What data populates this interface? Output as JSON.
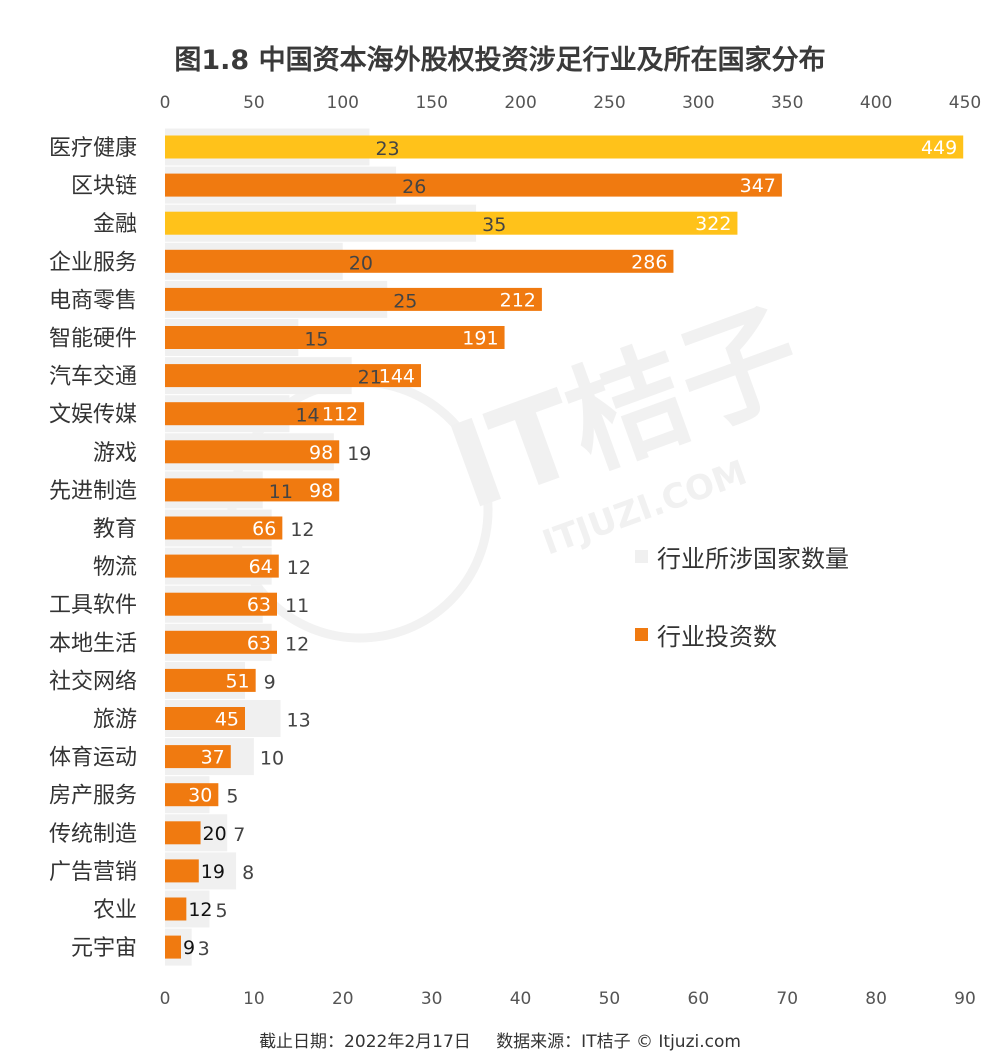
{
  "title": "图1.8 中国资本海外股权投资涉足行业及所在国家分布",
  "footer": {
    "date": "截止日期：2022年2月17日",
    "source": "数据来源：IT桔子 © Itjuzi.com"
  },
  "watermark": {
    "brand": "IT桔子",
    "site": "ITJUZI.COM"
  },
  "colors": {
    "investment": "#F07A10",
    "investment_highlight": "#FFC21A",
    "countries": "#F0F0F0",
    "countries_label": "#444444",
    "investment_label": "#FFFFFF",
    "axis_text": "#555555"
  },
  "chart_data": {
    "type": "bar",
    "orientation": "horizontal",
    "title": "图1.8 中国资本海外股权投资涉足行业及所在国家分布",
    "categories": [
      "医疗健康",
      "区块链",
      "金融",
      "企业服务",
      "电商零售",
      "智能硬件",
      "汽车交通",
      "文娱传媒",
      "游戏",
      "先进制造",
      "教育",
      "物流",
      "工具软件",
      "本地生活",
      "社交网络",
      "旅游",
      "体育运动",
      "房产服务",
      "传统制造",
      "广告营销",
      "农业",
      "元宇宙"
    ],
    "series": [
      {
        "name": "行业投资数",
        "axis": "top",
        "values": [
          449,
          347,
          322,
          286,
          212,
          191,
          144,
          112,
          98,
          98,
          66,
          64,
          63,
          63,
          51,
          45,
          37,
          30,
          20,
          19,
          12,
          9
        ],
        "highlighted": [
          "医疗健康",
          "金融"
        ]
      },
      {
        "name": "行业所涉国家数量",
        "axis": "bottom",
        "values": [
          23,
          26,
          35,
          20,
          25,
          15,
          21,
          14,
          19,
          11,
          12,
          12,
          11,
          12,
          9,
          13,
          10,
          5,
          7,
          8,
          5,
          3
        ]
      }
    ],
    "top_axis": {
      "min": 0,
      "max": 450,
      "ticks": [
        0,
        50,
        100,
        150,
        200,
        250,
        300,
        350,
        400,
        450
      ]
    },
    "bottom_axis": {
      "min": 0,
      "max": 90,
      "ticks": [
        0,
        10,
        20,
        30,
        40,
        50,
        60,
        70,
        80,
        90
      ]
    },
    "grid": false,
    "legend": {
      "position": "right"
    }
  }
}
